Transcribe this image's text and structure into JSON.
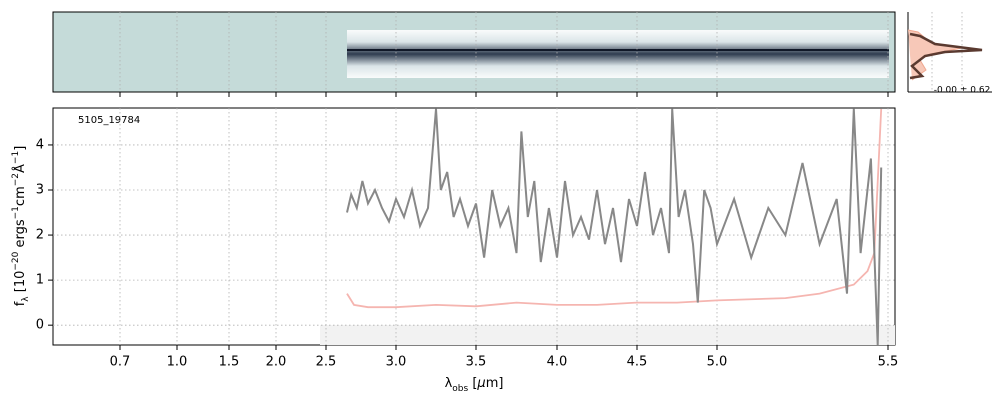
{
  "chart_data": {
    "type": "line",
    "label": "5105_19784",
    "profile_label": "-0.00 ± 0.62",
    "xlabel_parts": [
      {
        "text": "λ"
      },
      {
        "text": "obs",
        "sub": true
      },
      {
        "text": " ["
      },
      {
        "text": "μ",
        "italic": true
      },
      {
        "text": "m]"
      }
    ],
    "ylabel_parts": [
      {
        "text": "f"
      },
      {
        "text": "λ",
        "sub": true
      },
      {
        "text": " [10"
      },
      {
        "text": "−20",
        "sup": true
      },
      {
        "text": " ergs"
      },
      {
        "text": "−1",
        "sup": true
      },
      {
        "text": "cm"
      },
      {
        "text": "−2",
        "sup": true
      },
      {
        "text": "Å"
      },
      {
        "text": "−1",
        "sup": true
      },
      {
        "text": "]"
      }
    ],
    "xlim": [
      0.35,
      5.52
    ],
    "xticks": [
      0.7,
      {
        "value": 1,
        "label": "1.0"
      },
      1.5,
      {
        "value": 2,
        "label": "2.0"
      },
      2.5,
      {
        "value": 3,
        "label": "3.0"
      },
      3.5,
      {
        "value": 4,
        "label": "4.0"
      },
      4.5,
      {
        "value": 5,
        "label": "5.0"
      },
      5.5
    ],
    "ylim": [
      -0.44,
      4.82
    ],
    "yticks": [
      0,
      1,
      2,
      3,
      4
    ],
    "grid": true,
    "series": [
      {
        "color": "#888888",
        "x": [
          2.65,
          2.68,
          2.72,
          2.76,
          2.8,
          2.85,
          2.9,
          2.95,
          3.0,
          3.05,
          3.1,
          3.15,
          3.2,
          3.25,
          3.28,
          3.32,
          3.36,
          3.4,
          3.45,
          3.5,
          3.55,
          3.6,
          3.65,
          3.7,
          3.75,
          3.78,
          3.82,
          3.86,
          3.9,
          3.95,
          4.0,
          4.05,
          4.1,
          4.15,
          4.2,
          4.25,
          4.3,
          4.35,
          4.4,
          4.45,
          4.5,
          4.55,
          4.6,
          4.65,
          4.7,
          4.72,
          4.76,
          4.8,
          4.85,
          4.88,
          4.92,
          4.96,
          5.0,
          5.05,
          5.1,
          5.15,
          5.2,
          5.25,
          5.3,
          5.35,
          5.38,
          5.4,
          5.42,
          5.45,
          5.47,
          5.48
        ],
        "values": [
          2.5,
          2.9,
          2.6,
          3.2,
          2.7,
          3.0,
          2.6,
          2.3,
          2.8,
          2.4,
          3.0,
          2.2,
          2.6,
          4.8,
          3.0,
          3.4,
          2.4,
          2.8,
          2.2,
          2.7,
          1.5,
          3.0,
          2.2,
          2.6,
          1.6,
          4.3,
          2.4,
          3.2,
          1.4,
          2.6,
          1.5,
          3.2,
          2.0,
          2.4,
          1.9,
          3.0,
          1.8,
          2.6,
          1.4,
          2.8,
          2.2,
          3.4,
          2.0,
          2.6,
          1.6,
          4.8,
          2.4,
          3.0,
          1.8,
          0.5,
          3.0,
          2.6,
          1.8,
          2.8,
          1.5,
          2.6,
          2.0,
          3.6,
          1.8,
          2.8,
          0.7,
          4.8,
          1.6,
          3.7,
          -0.44,
          3.5
        ]
      },
      {
        "color": "#f5b5b0",
        "x": [
          2.65,
          2.7,
          2.8,
          3.0,
          3.25,
          3.5,
          3.75,
          4.0,
          4.25,
          4.5,
          4.75,
          5.0,
          5.2,
          5.3,
          5.4,
          5.44,
          5.46,
          5.48
        ],
        "values": [
          0.7,
          0.45,
          0.4,
          0.4,
          0.45,
          0.42,
          0.5,
          0.45,
          0.45,
          0.5,
          0.5,
          0.55,
          0.6,
          0.7,
          0.9,
          1.2,
          1.6,
          4.8
        ]
      }
    ]
  }
}
